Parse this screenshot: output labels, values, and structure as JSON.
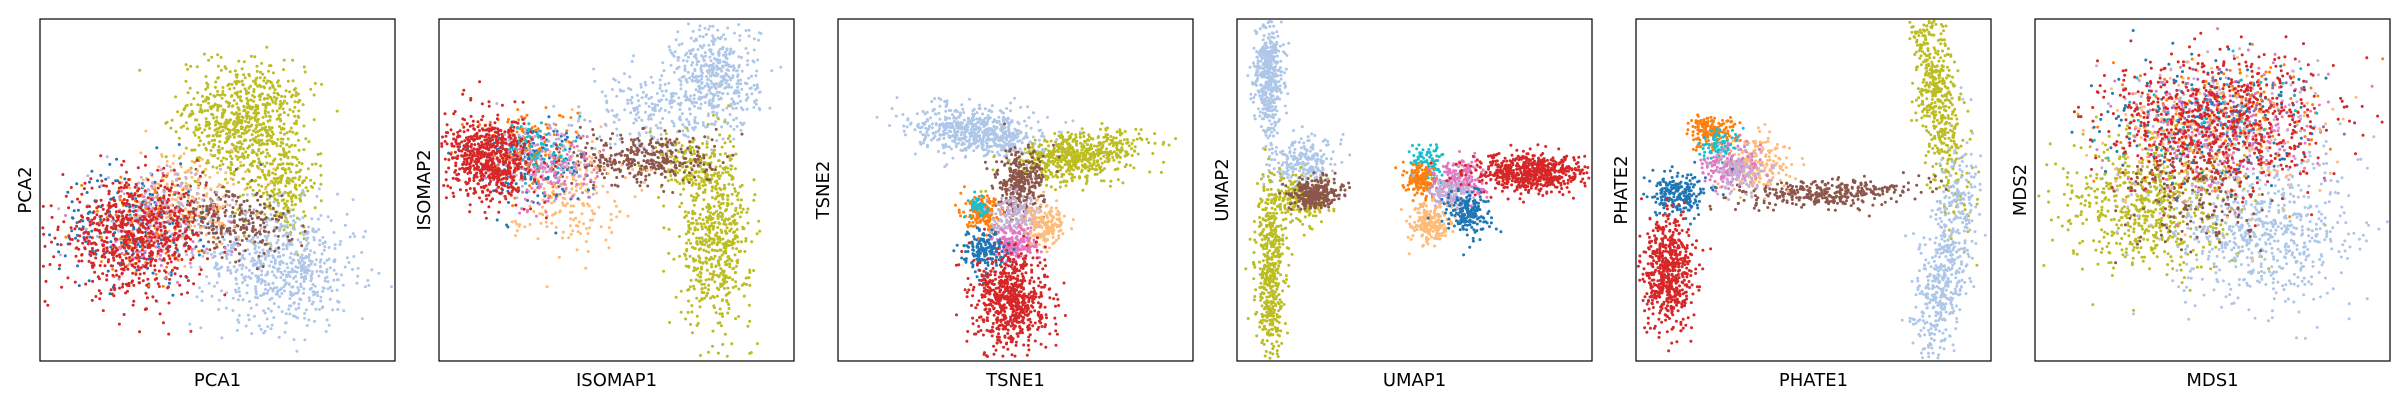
{
  "palette": {
    "blue": "#1f77b4",
    "lightblue": "#aec7e8",
    "orange": "#ff7f0e",
    "peach": "#ffbb78",
    "red": "#d62728",
    "pink": "#e377c2",
    "lavender": "#c5b0d5",
    "purple": "#9467bd",
    "brown": "#8c564b",
    "olive": "#bcbd22",
    "cyan": "#17becf",
    "green": "#2ca02c"
  },
  "chart_data": [
    {
      "type": "scatter",
      "xlabel": "PCA1",
      "ylabel": "PCA2",
      "xlim": [
        0,
        10
      ],
      "ylim": [
        0,
        10
      ],
      "grid": false,
      "clusters": [
        {
          "color": "olive",
          "cx": 5.7,
          "cy": 7.0,
          "sx": 0.8,
          "sy": 0.9,
          "rot": -20,
          "n": 700
        },
        {
          "color": "olive",
          "cx": 6.8,
          "cy": 5.2,
          "sx": 0.5,
          "sy": 0.8,
          "n": 250
        },
        {
          "color": "lightblue",
          "cx": 6.8,
          "cy": 2.8,
          "sx": 1.1,
          "sy": 0.9,
          "rot": -10,
          "n": 650
        },
        {
          "color": "brown",
          "cx": 5.2,
          "cy": 4.2,
          "sx": 0.9,
          "sy": 0.5,
          "rot": -10,
          "n": 300
        },
        {
          "color": "peach",
          "cx": 4.0,
          "cy": 4.8,
          "sx": 0.9,
          "sy": 0.7,
          "n": 200
        },
        {
          "color": "blue",
          "cx": 2.6,
          "cy": 4.0,
          "sx": 1.0,
          "sy": 0.8,
          "n": 250
        },
        {
          "color": "lavender",
          "cx": 3.3,
          "cy": 4.3,
          "sx": 0.9,
          "sy": 0.7,
          "n": 150
        },
        {
          "color": "orange",
          "cx": 3.0,
          "cy": 3.9,
          "sx": 0.9,
          "sy": 0.7,
          "n": 120
        },
        {
          "color": "pink",
          "cx": 3.2,
          "cy": 3.7,
          "sx": 0.9,
          "sy": 0.7,
          "n": 100
        },
        {
          "color": "red",
          "cx": 2.6,
          "cy": 3.6,
          "sx": 1.0,
          "sy": 0.8,
          "n": 700
        }
      ]
    },
    {
      "type": "scatter",
      "xlabel": "ISOMAP1",
      "ylabel": "ISOMAP2",
      "xlim": [
        0,
        10
      ],
      "ylim": [
        0,
        10
      ],
      "grid": false,
      "clusters": [
        {
          "color": "lightblue",
          "cx": 7.8,
          "cy": 8.3,
          "sx": 0.6,
          "sy": 0.8,
          "n": 450
        },
        {
          "color": "lightblue",
          "cx": 6.0,
          "cy": 7.3,
          "sx": 0.9,
          "sy": 0.6,
          "n": 200
        },
        {
          "color": "olive",
          "cx": 7.8,
          "cy": 3.5,
          "sx": 0.5,
          "sy": 1.2,
          "n": 550
        },
        {
          "color": "olive",
          "cx": 7.2,
          "cy": 5.7,
          "sx": 0.5,
          "sy": 0.5,
          "n": 180
        },
        {
          "color": "brown",
          "cx": 5.8,
          "cy": 5.9,
          "sx": 1.0,
          "sy": 0.4,
          "n": 350
        },
        {
          "color": "peach",
          "cx": 3.6,
          "cy": 5.0,
          "sx": 0.8,
          "sy": 0.8,
          "n": 200
        },
        {
          "color": "blue",
          "cx": 2.5,
          "cy": 5.8,
          "sx": 0.8,
          "sy": 0.6,
          "n": 200
        },
        {
          "color": "orange",
          "cx": 2.4,
          "cy": 6.2,
          "sx": 0.7,
          "sy": 0.6,
          "n": 150
        },
        {
          "color": "pink",
          "cx": 3.0,
          "cy": 5.5,
          "sx": 0.8,
          "sy": 0.6,
          "n": 150
        },
        {
          "color": "lavender",
          "cx": 2.8,
          "cy": 6.0,
          "sx": 0.8,
          "sy": 0.6,
          "n": 120
        },
        {
          "color": "cyan",
          "cx": 2.8,
          "cy": 6.3,
          "sx": 0.5,
          "sy": 0.4,
          "n": 60
        },
        {
          "color": "red",
          "cx": 1.4,
          "cy": 5.9,
          "sx": 0.6,
          "sy": 0.6,
          "n": 650
        }
      ]
    },
    {
      "type": "scatter",
      "xlabel": "TSNE1",
      "ylabel": "TSNE2",
      "xlim": [
        0,
        10
      ],
      "ylim": [
        0,
        10
      ],
      "grid": false,
      "clusters": [
        {
          "color": "lightblue",
          "cx": 4.0,
          "cy": 6.7,
          "sx": 0.9,
          "sy": 0.35,
          "rot": -8,
          "n": 650
        },
        {
          "color": "olive",
          "cx": 6.8,
          "cy": 6.0,
          "sx": 0.9,
          "sy": 0.35,
          "rot": 10,
          "n": 600
        },
        {
          "color": "brown",
          "cx": 5.1,
          "cy": 5.2,
          "sx": 0.35,
          "sy": 0.45,
          "n": 300
        },
        {
          "color": "orange",
          "cx": 4.1,
          "cy": 4.3,
          "sx": 0.25,
          "sy": 0.25,
          "n": 180
        },
        {
          "color": "cyan",
          "cx": 4.0,
          "cy": 4.5,
          "sx": 0.15,
          "sy": 0.15,
          "n": 50
        },
        {
          "color": "lavender",
          "cx": 5.0,
          "cy": 4.2,
          "sx": 0.35,
          "sy": 0.3,
          "n": 180
        },
        {
          "color": "peach",
          "cx": 5.8,
          "cy": 4.0,
          "sx": 0.3,
          "sy": 0.3,
          "n": 180
        },
        {
          "color": "pink",
          "cx": 5.0,
          "cy": 3.4,
          "sx": 0.3,
          "sy": 0.25,
          "n": 180
        },
        {
          "color": "blue",
          "cx": 4.1,
          "cy": 3.2,
          "sx": 0.3,
          "sy": 0.3,
          "n": 180
        },
        {
          "color": "red",
          "cx": 4.9,
          "cy": 1.8,
          "sx": 0.5,
          "sy": 0.7,
          "n": 700
        }
      ]
    },
    {
      "type": "scatter",
      "xlabel": "UMAP1",
      "ylabel": "UMAP2",
      "xlim": [
        0,
        10
      ],
      "ylim": [
        0,
        10
      ],
      "grid": false,
      "clusters": [
        {
          "color": "lightblue",
          "cx": 0.9,
          "cy": 8.3,
          "sx": 0.2,
          "sy": 0.9,
          "n": 450
        },
        {
          "color": "lightblue",
          "cx": 1.9,
          "cy": 5.8,
          "sx": 0.45,
          "sy": 0.35,
          "n": 220
        },
        {
          "color": "olive",
          "cx": 0.95,
          "cy": 2.6,
          "sx": 0.2,
          "sy": 1.3,
          "n": 500
        },
        {
          "color": "olive",
          "cx": 1.7,
          "cy": 4.7,
          "sx": 0.4,
          "sy": 0.35,
          "n": 180
        },
        {
          "color": "brown",
          "cx": 2.2,
          "cy": 4.9,
          "sx": 0.35,
          "sy": 0.22,
          "n": 300
        },
        {
          "color": "cyan",
          "cx": 5.4,
          "cy": 5.8,
          "sx": 0.22,
          "sy": 0.3,
          "n": 100
        },
        {
          "color": "orange",
          "cx": 5.2,
          "cy": 5.3,
          "sx": 0.2,
          "sy": 0.25,
          "n": 150
        },
        {
          "color": "pink",
          "cx": 6.3,
          "cy": 5.3,
          "sx": 0.35,
          "sy": 0.3,
          "n": 200
        },
        {
          "color": "lavender",
          "cx": 6.0,
          "cy": 4.9,
          "sx": 0.3,
          "sy": 0.25,
          "n": 150
        },
        {
          "color": "peach",
          "cx": 5.4,
          "cy": 4.0,
          "sx": 0.3,
          "sy": 0.3,
          "n": 200
        },
        {
          "color": "blue",
          "cx": 6.5,
          "cy": 4.3,
          "sx": 0.3,
          "sy": 0.35,
          "n": 200
        },
        {
          "color": "red",
          "cx": 8.3,
          "cy": 5.5,
          "sx": 0.8,
          "sy": 0.28,
          "n": 650
        }
      ]
    },
    {
      "type": "scatter",
      "xlabel": "PHATE1",
      "ylabel": "PHATE2",
      "xlim": [
        0,
        10
      ],
      "ylim": [
        0,
        10
      ],
      "grid": false,
      "clusters": [
        {
          "color": "olive",
          "cx": 8.5,
          "cy": 7.8,
          "sx": 0.3,
          "sy": 1.7,
          "rot": 8,
          "n": 550
        },
        {
          "color": "lightblue",
          "cx": 8.7,
          "cy": 2.8,
          "sx": 0.35,
          "sy": 1.6,
          "rot": -10,
          "n": 550
        },
        {
          "color": "brown",
          "cx": 5.3,
          "cy": 4.9,
          "sx": 1.2,
          "sy": 0.2,
          "rot": 3,
          "n": 350
        },
        {
          "color": "peach",
          "cx": 3.4,
          "cy": 5.8,
          "sx": 0.5,
          "sy": 0.4,
          "n": 200
        },
        {
          "color": "orange",
          "cx": 2.1,
          "cy": 6.7,
          "sx": 0.35,
          "sy": 0.25,
          "n": 180
        },
        {
          "color": "cyan",
          "cx": 2.4,
          "cy": 6.3,
          "sx": 0.3,
          "sy": 0.25,
          "n": 80
        },
        {
          "color": "pink",
          "cx": 2.7,
          "cy": 5.7,
          "sx": 0.4,
          "sy": 0.3,
          "n": 150
        },
        {
          "color": "lavender",
          "cx": 3.0,
          "cy": 5.5,
          "sx": 0.4,
          "sy": 0.3,
          "n": 120
        },
        {
          "color": "blue",
          "cx": 1.2,
          "cy": 4.9,
          "sx": 0.45,
          "sy": 0.3,
          "n": 220
        },
        {
          "color": "red",
          "cx": 0.9,
          "cy": 2.6,
          "sx": 0.35,
          "sy": 0.8,
          "n": 600
        }
      ]
    },
    {
      "type": "scatter",
      "xlabel": "MDS1",
      "ylabel": "MDS2",
      "xlim": [
        0,
        10
      ],
      "ylim": [
        0,
        10
      ],
      "grid": false,
      "clusters": [
        {
          "color": "olive",
          "cx": 3.1,
          "cy": 4.6,
          "sx": 1.2,
          "sy": 1.0,
          "n": 650
        },
        {
          "color": "lightblue",
          "cx": 6.3,
          "cy": 3.8,
          "sx": 1.3,
          "sy": 1.1,
          "n": 650
        },
        {
          "color": "brown",
          "cx": 4.6,
          "cy": 4.9,
          "sx": 1.1,
          "sy": 0.8,
          "n": 200
        },
        {
          "color": "peach",
          "cx": 5.0,
          "cy": 6.5,
          "sx": 1.5,
          "sy": 1.0,
          "n": 260
        },
        {
          "color": "blue",
          "cx": 4.7,
          "cy": 7.0,
          "sx": 1.4,
          "sy": 0.9,
          "n": 200
        },
        {
          "color": "orange",
          "cx": 5.2,
          "cy": 7.2,
          "sx": 1.4,
          "sy": 0.9,
          "n": 180
        },
        {
          "color": "pink",
          "cx": 5.3,
          "cy": 6.6,
          "sx": 1.4,
          "sy": 1.0,
          "n": 180
        },
        {
          "color": "lavender",
          "cx": 5.0,
          "cy": 6.8,
          "sx": 1.4,
          "sy": 1.0,
          "n": 150
        },
        {
          "color": "purple",
          "cx": 5.5,
          "cy": 6.9,
          "sx": 1.3,
          "sy": 0.9,
          "n": 80
        },
        {
          "color": "cyan",
          "cx": 4.9,
          "cy": 7.2,
          "sx": 1.3,
          "sy": 0.8,
          "n": 60
        },
        {
          "color": "red",
          "cx": 5.1,
          "cy": 7.0,
          "sx": 1.6,
          "sy": 1.0,
          "n": 700
        }
      ]
    }
  ]
}
